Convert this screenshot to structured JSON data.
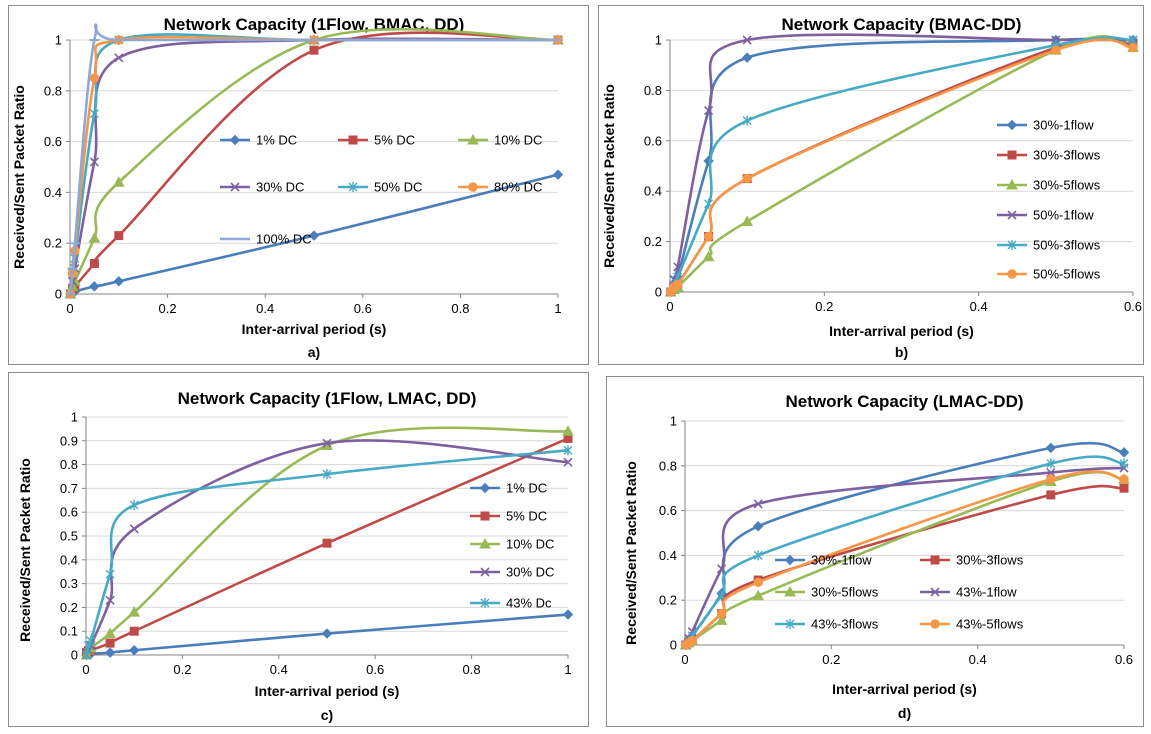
{
  "colors": {
    "s1": "#4A7EBB",
    "s2": "#BE4B48",
    "s3": "#98B954",
    "s4": "#7D60A0",
    "s5": "#46AAC5",
    "s6": "#F79646",
    "s7": "#8DA8D8",
    "grid": "#d9d9d9",
    "axis": "#868686",
    "frame": "#8c8c8c"
  },
  "chart_data": [
    {
      "panel": "a)",
      "type": "line",
      "title": "Network Capacity (1Flow, BMAC, DD)",
      "xlabel": "Inter-arrival period (s)",
      "ylabel": "Received/Sent Packet Ratio",
      "xlim": [
        0,
        1
      ],
      "ylim": [
        0,
        1
      ],
      "x_ticks": [
        0,
        0.2,
        0.4,
        0.6,
        0.8,
        1
      ],
      "x_tick_labels": [
        "0",
        "0.2",
        "0.4",
        "0.6",
        "0.8",
        "1"
      ],
      "y_ticks": [
        0,
        0.2,
        0.4,
        0.6,
        0.8,
        1
      ],
      "y_tick_labels": [
        "0",
        "0.2",
        "0.4",
        "0.6",
        "0.8",
        "1"
      ],
      "grid": true,
      "legend": "inside plot, upper right",
      "series": [
        {
          "name": "1% DC",
          "color": "s1",
          "marker": "diamond",
          "x": [
            0.001,
            0.005,
            0.01,
            0.05,
            0.1,
            0.5,
            1
          ],
          "y": [
            0.0,
            0.005,
            0.01,
            0.03,
            0.05,
            0.23,
            0.47
          ]
        },
        {
          "name": "5% DC",
          "color": "s2",
          "marker": "square",
          "x": [
            0.001,
            0.005,
            0.01,
            0.05,
            0.1,
            0.5,
            1
          ],
          "y": [
            0.0,
            0.02,
            0.03,
            0.12,
            0.23,
            0.96,
            1.0
          ]
        },
        {
          "name": "10% DC",
          "color": "s3",
          "marker": "triangle",
          "x": [
            0.001,
            0.005,
            0.01,
            0.05,
            0.1,
            0.5,
            1
          ],
          "y": [
            0.0,
            0.03,
            0.05,
            0.22,
            0.44,
            1.0,
            1.0
          ]
        },
        {
          "name": "30% DC",
          "color": "s4",
          "marker": "x",
          "x": [
            0.001,
            0.005,
            0.01,
            0.05,
            0.1,
            0.5,
            1
          ],
          "y": [
            0.0,
            0.05,
            0.1,
            0.52,
            0.93,
            1.0,
            1.0
          ]
        },
        {
          "name": "50% DC",
          "color": "s5",
          "marker": "star",
          "x": [
            0.001,
            0.005,
            0.01,
            0.05,
            0.1,
            0.5,
            1
          ],
          "y": [
            0.0,
            0.08,
            0.14,
            0.71,
            1.0,
            1.0,
            1.0
          ]
        },
        {
          "name": "80% DC",
          "color": "s6",
          "marker": "circle",
          "x": [
            0.001,
            0.005,
            0.01,
            0.05,
            0.1,
            0.5,
            1
          ],
          "y": [
            0.0,
            0.08,
            0.17,
            0.85,
            1.0,
            1.0,
            1.0
          ]
        },
        {
          "name": "100% DC",
          "color": "s7",
          "marker": "dash",
          "x": [
            0.001,
            0.005,
            0.01,
            0.05,
            0.1,
            0.5,
            1
          ],
          "y": [
            0.0,
            0.1,
            0.2,
            1.0,
            1.0,
            1.0,
            1.0
          ]
        }
      ]
    },
    {
      "panel": "b)",
      "type": "line",
      "title": "Network Capacity (BMAC-DD)",
      "xlabel": "Inter-arrival period (s)",
      "ylabel": "Received/Sent Packet Ratio",
      "xlim": [
        0,
        0.6
      ],
      "ylim": [
        0,
        1
      ],
      "x_ticks": [
        0,
        0.2,
        0.4,
        0.6
      ],
      "x_tick_labels": [
        "0",
        "0.2",
        "0.4",
        "0.6"
      ],
      "y_ticks": [
        0,
        0.2,
        0.4,
        0.6,
        0.8,
        1
      ],
      "y_tick_labels": [
        "0",
        "0.2",
        "0.4",
        "0.6",
        "0.8",
        "1"
      ],
      "grid": true,
      "legend": "inside plot, right",
      "series": [
        {
          "name": "30%-1flow",
          "color": "s1",
          "marker": "diamond",
          "x": [
            0.001,
            0.005,
            0.01,
            0.05,
            0.1,
            0.5,
            0.6
          ],
          "y": [
            0.0,
            0.03,
            0.06,
            0.52,
            0.93,
            1.0,
            1.0
          ]
        },
        {
          "name": "30%-3flows",
          "color": "s2",
          "marker": "square",
          "x": [
            0.001,
            0.005,
            0.01,
            0.05,
            0.1,
            0.5,
            0.6
          ],
          "y": [
            0.0,
            0.02,
            0.03,
            0.22,
            0.45,
            0.97,
            0.98
          ]
        },
        {
          "name": "30%-5flows",
          "color": "s3",
          "marker": "triangle",
          "x": [
            0.001,
            0.005,
            0.01,
            0.05,
            0.1,
            0.5,
            0.6
          ],
          "y": [
            0.0,
            0.01,
            0.02,
            0.14,
            0.28,
            0.96,
            0.97
          ]
        },
        {
          "name": "50%-1flow",
          "color": "s4",
          "marker": "x",
          "x": [
            0.001,
            0.005,
            0.01,
            0.05,
            0.1,
            0.5,
            0.6
          ],
          "y": [
            0.0,
            0.05,
            0.1,
            0.72,
            1.0,
            1.0,
            1.0
          ]
        },
        {
          "name": "50%-3flows",
          "color": "s5",
          "marker": "star",
          "x": [
            0.001,
            0.005,
            0.01,
            0.05,
            0.1,
            0.5,
            0.6
          ],
          "y": [
            0.0,
            0.03,
            0.06,
            0.35,
            0.68,
            0.98,
            1.0
          ]
        },
        {
          "name": "50%-5flows",
          "color": "s6",
          "marker": "circle",
          "x": [
            0.001,
            0.005,
            0.01,
            0.05,
            0.1,
            0.5,
            0.6
          ],
          "y": [
            0.0,
            0.02,
            0.03,
            0.22,
            0.45,
            0.96,
            0.97
          ]
        }
      ]
    },
    {
      "panel": "c)",
      "type": "line",
      "title": "Network Capacity (1Flow, LMAC, DD)",
      "xlabel": "Inter-arrival period (s)",
      "ylabel": "Received/Sent Packet Ratio",
      "xlim": [
        0,
        1
      ],
      "ylim": [
        0,
        1
      ],
      "x_ticks": [
        0,
        0.2,
        0.4,
        0.6,
        0.8,
        1
      ],
      "x_tick_labels": [
        "0",
        "0.2",
        "0.4",
        "0.6",
        "0.8",
        "1"
      ],
      "y_ticks": [
        0,
        0.1,
        0.2,
        0.3,
        0.4,
        0.5,
        0.6,
        0.7,
        0.8,
        0.9,
        1
      ],
      "y_tick_labels": [
        "0",
        "0.1",
        "0.2",
        "0.3",
        "0.4",
        "0.5",
        "0.6",
        "0.7",
        "0.8",
        "0.9",
        "1"
      ],
      "grid": true,
      "legend": "inside plot, right",
      "series": [
        {
          "name": "1% DC",
          "color": "s1",
          "marker": "diamond",
          "x": [
            0.001,
            0.005,
            0.01,
            0.05,
            0.1,
            0.5,
            1
          ],
          "y": [
            0.0,
            0.003,
            0.005,
            0.01,
            0.02,
            0.09,
            0.17
          ]
        },
        {
          "name": "5% DC",
          "color": "s2",
          "marker": "square",
          "x": [
            0.001,
            0.005,
            0.01,
            0.05,
            0.1,
            0.5,
            1
          ],
          "y": [
            0.01,
            0.015,
            0.02,
            0.05,
            0.1,
            0.47,
            0.91
          ]
        },
        {
          "name": "10% DC",
          "color": "s3",
          "marker": "triangle",
          "x": [
            0.001,
            0.005,
            0.01,
            0.05,
            0.1,
            0.5,
            1
          ],
          "y": [
            0.0,
            0.02,
            0.03,
            0.09,
            0.18,
            0.88,
            0.94
          ]
        },
        {
          "name": "30% DC",
          "color": "s4",
          "marker": "x",
          "x": [
            0.001,
            0.005,
            0.01,
            0.05,
            0.1,
            0.5,
            1
          ],
          "y": [
            0.0,
            0.02,
            0.04,
            0.23,
            0.53,
            0.89,
            0.81
          ]
        },
        {
          "name": "43% Dc",
          "color": "s5",
          "marker": "star",
          "x": [
            0.001,
            0.005,
            0.01,
            0.05,
            0.1,
            0.5,
            1
          ],
          "y": [
            0.0,
            0.04,
            0.06,
            0.34,
            0.63,
            0.76,
            0.86
          ]
        }
      ]
    },
    {
      "panel": "d)",
      "type": "line",
      "title": "Network Capacity (LMAC-DD)",
      "xlabel": "Inter-arrival period (s)",
      "ylabel": "Received/Sent Packet Ratio",
      "xlim": [
        0,
        0.6
      ],
      "ylim": [
        0,
        1
      ],
      "x_ticks": [
        0,
        0.2,
        0.4,
        0.6
      ],
      "x_tick_labels": [
        "0",
        "0.2",
        "0.4",
        "0.6"
      ],
      "y_ticks": [
        0,
        0.2,
        0.4,
        0.6,
        0.8,
        1
      ],
      "y_tick_labels": [
        "0",
        "0.2",
        "0.4",
        "0.6",
        "0.8",
        "1"
      ],
      "grid": true,
      "legend": "inside plot, lower right",
      "series": [
        {
          "name": "30%-1flow",
          "color": "s1",
          "marker": "diamond",
          "x": [
            0.001,
            0.005,
            0.01,
            0.05,
            0.1,
            0.5,
            0.6
          ],
          "y": [
            0.0,
            0.02,
            0.04,
            0.23,
            0.53,
            0.88,
            0.86
          ]
        },
        {
          "name": "30%-3flows",
          "color": "s2",
          "marker": "square",
          "x": [
            0.001,
            0.005,
            0.01,
            0.05,
            0.1,
            0.5,
            0.6
          ],
          "y": [
            0.0,
            0.01,
            0.02,
            0.14,
            0.29,
            0.67,
            0.7
          ]
        },
        {
          "name": "30%-5flows",
          "color": "s3",
          "marker": "triangle",
          "x": [
            0.001,
            0.005,
            0.01,
            0.05,
            0.1,
            0.5,
            0.6
          ],
          "y": [
            0.0,
            0.01,
            0.02,
            0.11,
            0.22,
            0.73,
            0.74
          ]
        },
        {
          "name": "43%-1flow",
          "color": "s4",
          "marker": "x",
          "x": [
            0.001,
            0.005,
            0.01,
            0.05,
            0.1,
            0.5,
            0.6
          ],
          "y": [
            0.0,
            0.03,
            0.06,
            0.34,
            0.63,
            0.77,
            0.79
          ]
        },
        {
          "name": "43%-3flows",
          "color": "s5",
          "marker": "star",
          "x": [
            0.001,
            0.005,
            0.01,
            0.05,
            0.1,
            0.5,
            0.6
          ],
          "y": [
            0.0,
            0.02,
            0.04,
            0.22,
            0.4,
            0.81,
            0.81
          ]
        },
        {
          "name": "43%-5flows",
          "color": "s6",
          "marker": "circle",
          "x": [
            0.001,
            0.005,
            0.01,
            0.05,
            0.1,
            0.5,
            0.6
          ],
          "y": [
            0.0,
            0.01,
            0.02,
            0.14,
            0.28,
            0.74,
            0.74
          ]
        }
      ]
    }
  ]
}
